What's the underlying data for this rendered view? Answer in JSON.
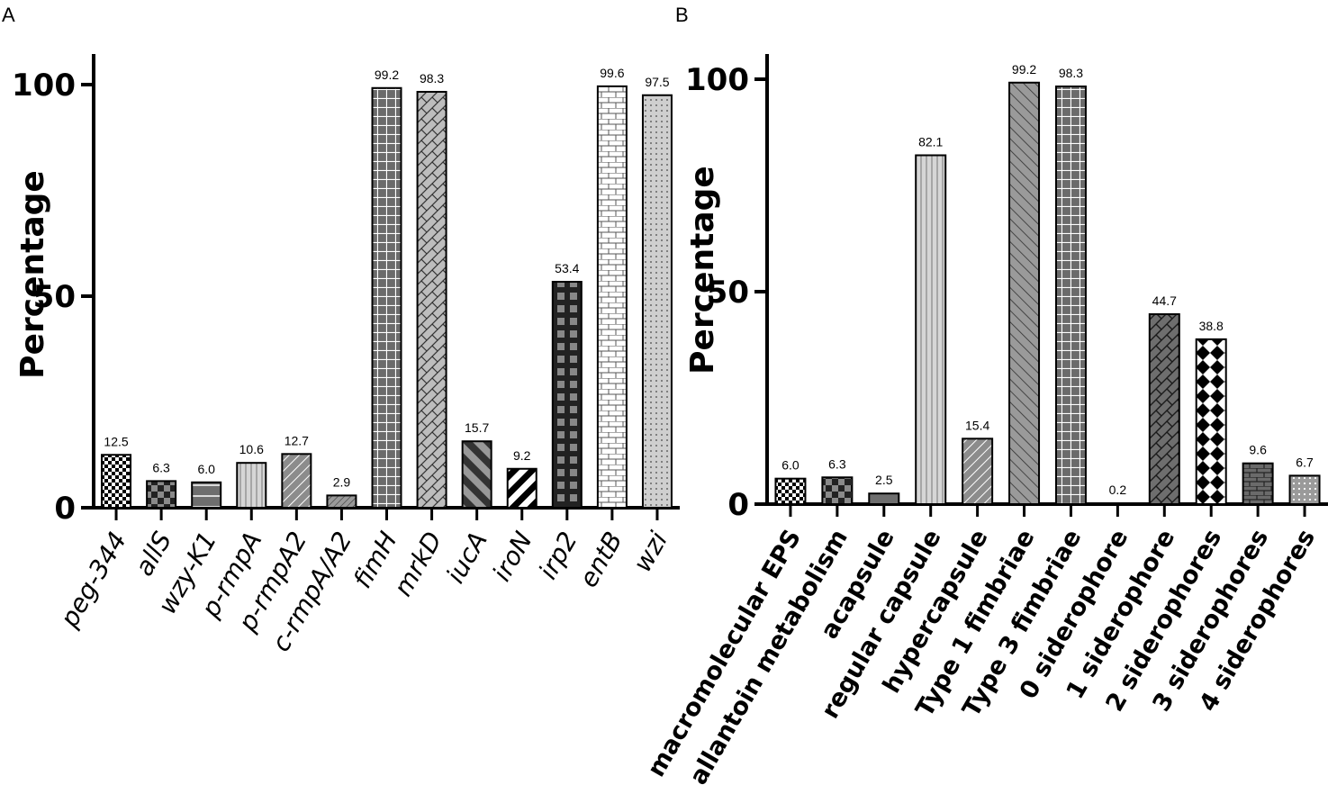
{
  "chart_data": [
    {
      "type": "bar",
      "panel": "A",
      "title": "",
      "xlabel": "",
      "ylabel": "Percentage",
      "ylim": [
        0,
        106
      ],
      "yticks": [
        0,
        50,
        100
      ],
      "categories": [
        "peg-344",
        "allS",
        "wzy-K1",
        "p-rmpA",
        "p-rmpA2",
        "c-rmpA/A2",
        "fimH",
        "mrkD",
        "iucA",
        "iroN",
        "irp2",
        "entB",
        "wzi"
      ],
      "values": [
        12.5,
        6.3,
        6.0,
        10.6,
        12.7,
        2.9,
        99.2,
        98.3,
        15.7,
        9.2,
        53.4,
        99.6,
        97.5
      ],
      "value_labels": [
        "12.5",
        "6.3",
        "6.0",
        "10.6",
        "12.7",
        "2.9",
        "99.2",
        "98.3",
        "15.7",
        "9.2",
        "53.4",
        "99.6",
        "97.5"
      ],
      "patterns": [
        "checker-small",
        "checker-dark",
        "hline-dark",
        "vlines-light",
        "diag-mid",
        "diag-dense",
        "grid-dark",
        "weave",
        "diag-bold",
        "diag-black",
        "grid-black",
        "brick-white",
        "dots-light"
      ]
    },
    {
      "type": "bar",
      "panel": "B",
      "title": "",
      "xlabel": "",
      "ylabel": "Percentage",
      "ylim": [
        0,
        106
      ],
      "yticks": [
        0,
        50,
        100
      ],
      "categories": [
        "macromolecular EPS",
        "allantoin metabolism",
        "acapsule",
        "regular capsule",
        "hypercapsule",
        "Type 1 fimbriae",
        "Type 3 fimbriae",
        "0 siderophore",
        "1 siderophore",
        "2 siderophores",
        "3 siderophores",
        "4 siderophores"
      ],
      "values": [
        6.0,
        6.3,
        2.5,
        82.1,
        15.4,
        99.2,
        98.3,
        0.2,
        44.7,
        38.8,
        9.6,
        6.7
      ],
      "value_labels": [
        "6.0",
        "6.3",
        "2.5",
        "82.1",
        "15.4",
        "99.2",
        "98.3",
        "0.2",
        "44.7",
        "38.8",
        "9.6",
        "6.7"
      ],
      "patterns": [
        "checker-small",
        "checker-dark",
        "solid-dark",
        "vlines-light",
        "diag-mid",
        "diag-back",
        "grid-dark",
        "solid-dark",
        "weave-dark",
        "diamond",
        "brick-dark",
        "dots-mid"
      ]
    }
  ],
  "panels": {
    "a_label": "A",
    "b_label": "B"
  },
  "colors": {
    "axis": "#000000",
    "dark_fill": "#6e6e6e",
    "mid_fill": "#8c8c8c",
    "light_fill": "#cfcfcf"
  }
}
